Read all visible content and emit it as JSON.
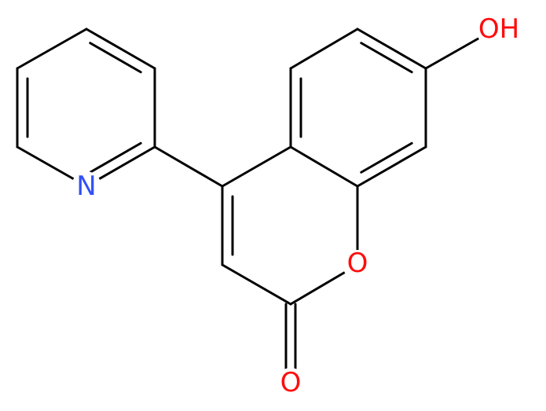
{
  "labels": {
    "hydroxyl": "OH",
    "pyridine_nitrogen": "N",
    "ring_oxygen": "O",
    "carbonyl_oxygen": "O"
  }
}
